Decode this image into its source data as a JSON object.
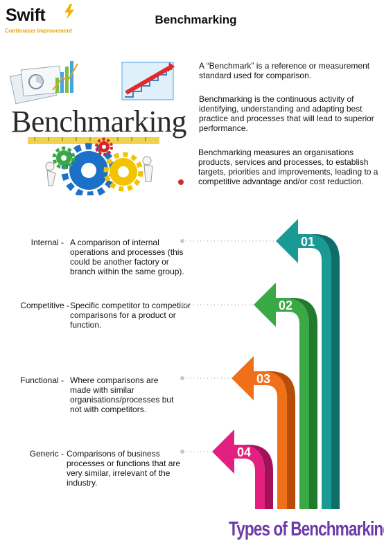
{
  "logo": {
    "brand": "Swift",
    "tagline": "Continuous Improvement"
  },
  "title": "Benchmarking",
  "hero": {
    "word": "Benchmarking"
  },
  "paragraphs": [
    "A “Benchmark” is a reference or measurement standard used for comparison.",
    "Benchmarking is the continuous activity of identifying, understanding and adapting best practice and processes that will lead to superior performance.",
    "Benchmarking measures an organisations products, services and processes, to establish targets, priorities and improvements, leading to a competitive advantage and/or cost reduction."
  ],
  "types": [
    {
      "term": "Internal -",
      "description": "A comparison of internal operations and processes (this could be another factory or branch within the same group).",
      "number": "01",
      "color": "#1a9a95"
    },
    {
      "term": "Competitive -",
      "description": "Specific competitor to competitor comparisons for a product or function.",
      "number": "02",
      "color": "#3aa845"
    },
    {
      "term": "Functional -",
      "description": "Where comparisons are made with similar organisations/processes but not with competitors.",
      "number": "03",
      "color": "#f07019"
    },
    {
      "term": "Generic -",
      "description": "Comparisons of business processes or functions that are very similar, irrelevant of the industry.",
      "number": "04",
      "color": "#e3207f"
    }
  ],
  "footer_title": "Types of Benchmarking"
}
